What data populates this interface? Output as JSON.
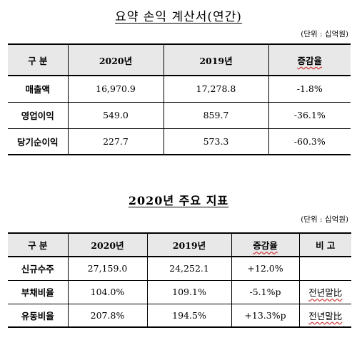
{
  "income_statement": {
    "title": "요약 손익 계산서(연간)",
    "unit": "(단위 : 십억원)",
    "headers": [
      "구 분",
      "2020년",
      "2019년",
      "증감율"
    ],
    "rows": [
      {
        "label": "매출액",
        "y2020": "16,970.9",
        "y2019": "17,278.8",
        "change": "-1.8%"
      },
      {
        "label": "영업이익",
        "y2020": "549.0",
        "y2019": "859.7",
        "change": "-36.1%"
      },
      {
        "label": "당기순이익",
        "y2020": "227.7",
        "y2019": "573.3",
        "change": "-60.3%"
      }
    ]
  },
  "key_indicators": {
    "title": "2020년 주요 지표",
    "unit": "(단위 : 십억원)",
    "headers": [
      "구 분",
      "2020년",
      "2019년",
      "증감율",
      "비 고"
    ],
    "rows": [
      {
        "label": "신규수주",
        "y2020": "27,159.0",
        "y2019": "24,252.1",
        "change": "+12.0%",
        "note": ""
      },
      {
        "label": "부채비율",
        "y2020": "104.0%",
        "y2019": "109.1%",
        "change": "-5.1%p",
        "note": "전년말比"
      },
      {
        "label": "유동비율",
        "y2020": "207.8%",
        "y2019": "194.5%",
        "change": "+13.3%p",
        "note": "전년말比"
      }
    ]
  }
}
